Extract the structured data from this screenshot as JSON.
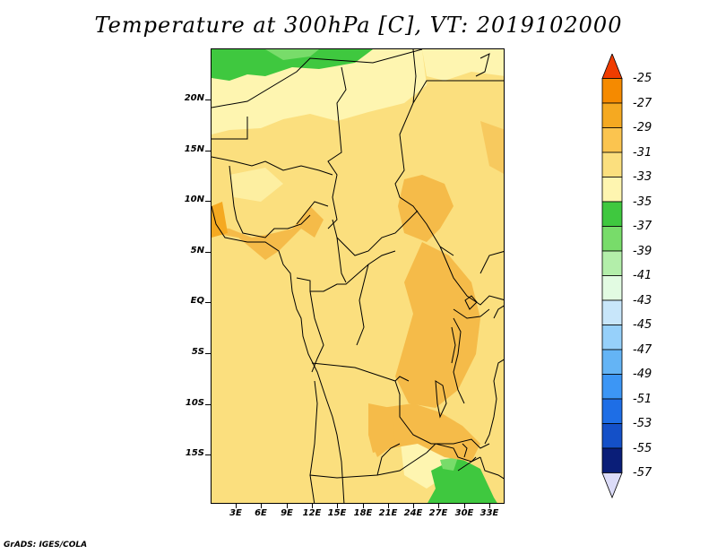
{
  "title": "Temperature at 300hPa [C], VT: 2019102000",
  "credit": "GrADS: IGES/COLA",
  "lat_labels": [
    "20N",
    "15N",
    "10N",
    "5N",
    "EQ",
    "5S",
    "10S",
    "15S"
  ],
  "lon_labels": [
    "3E",
    "6E",
    "9E",
    "12E",
    "15E",
    "18E",
    "21E",
    "24E",
    "27E",
    "30E",
    "33E"
  ],
  "legend": {
    "labels": [
      "-25",
      "-27",
      "-29",
      "-31",
      "-33",
      "-35",
      "-37",
      "-39",
      "-41",
      "-43",
      "-45",
      "-47",
      "-49",
      "-51",
      "-53",
      "-55",
      "-57"
    ],
    "colors": [
      "#f03c00",
      "#f58a00",
      "#f5a921",
      "#fbc44f",
      "#fbdf7e",
      "#fef5b0",
      "#3fc83f",
      "#78dc6a",
      "#b3eeaa",
      "#e2fbe2",
      "#c8e6fa",
      "#96d0fa",
      "#64b4f5",
      "#3c96f5",
      "#1e6ee6",
      "#1450c8",
      "#0a1e78",
      "#dcdcf8"
    ]
  },
  "colors": {
    "base_fill": "#fbdf7e",
    "warm_fill": "#f5bb49",
    "cool_fill": "#fef5b0",
    "green_fill": "#3fc83f",
    "light_green_fill": "#78dc6a"
  }
}
